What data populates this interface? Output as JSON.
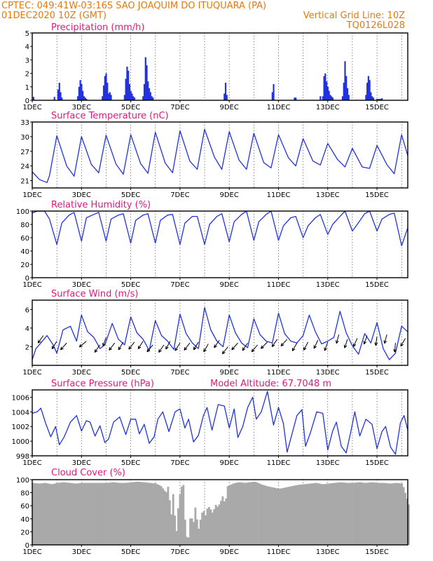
{
  "header": {
    "line1": "CPTEC:   049:41W-03:16S  SAO JOAQUIM DO ITUQUARA (PA)",
    "date": "01DEC2020 10Z (GMT)",
    "vgrid": "Vertical Grid Line: 10Z",
    "code": "TQ0126L028"
  },
  "colors": {
    "header": "#e8780c",
    "title": "#e0197d",
    "line": "#2233dd",
    "bar": "#2233dd",
    "cloud": "#a9a9a9",
    "arrow": "#000000"
  },
  "x_axis": {
    "tick_labels": [
      "1DEC",
      "3DEC",
      "5DEC",
      "7DEC",
      "9DEC",
      "11DEC",
      "13DEC",
      "15DEC"
    ],
    "tick_days": [
      0,
      2,
      4,
      6,
      8,
      10,
      12,
      14
    ],
    "range_days": [
      0,
      15.25
    ]
  },
  "chart_data": [
    {
      "type": "bar",
      "title": "Precipitation (mm/h)",
      "ylim": [
        0,
        5
      ],
      "yticks": [
        0,
        1,
        2,
        3,
        4,
        5
      ],
      "x_unit": "days since 01DEC2020 10Z",
      "series": [
        {
          "x": [
            0.05,
            0.9,
            1.05,
            1.1,
            1.15,
            1.2,
            1.85,
            1.9,
            1.95,
            2.0,
            2.05,
            2.1,
            2.15,
            2.2,
            2.85,
            2.9,
            2.95,
            3.0,
            3.05,
            3.1,
            3.15,
            3.2,
            3.75,
            3.8,
            3.85,
            3.9,
            3.95,
            4.0,
            4.05,
            4.1,
            4.15,
            4.5,
            4.55,
            4.6,
            4.65,
            4.7,
            4.75,
            4.8,
            4.85,
            4.9,
            7.8,
            7.85,
            7.9,
            9.75,
            9.8,
            10.65,
            10.7,
            11.7,
            11.8,
            11.85,
            11.9,
            11.95,
            12.0,
            12.05,
            12.1,
            12.15,
            12.2,
            12.6,
            12.65,
            12.7,
            12.75,
            12.8,
            12.85,
            13.55,
            13.6,
            13.65,
            13.7,
            13.75,
            13.8,
            13.85,
            14.0,
            14.05,
            14.1,
            14.15,
            14.2
          ],
          "values": [
            0.25,
            0.25,
            0.8,
            1.3,
            0.6,
            0.2,
            0.3,
            1.0,
            1.5,
            1.2,
            0.7,
            0.3,
            0.2,
            0.1,
            0.3,
            1.1,
            1.8,
            2.0,
            1.3,
            0.5,
            0.6,
            0.4,
            0.4,
            1.6,
            2.5,
            2.2,
            1.2,
            0.7,
            0.5,
            0.3,
            0.2,
            0.3,
            1.2,
            3.2,
            2.6,
            1.4,
            0.9,
            0.6,
            0.3,
            0.2,
            0.5,
            1.3,
            0.4,
            0.6,
            1.2,
            0.2,
            0.2,
            0.3,
            0.3,
            1.8,
            2.0,
            1.4,
            1.0,
            0.7,
            0.4,
            0.3,
            0.2,
            0.3,
            1.3,
            2.9,
            1.8,
            0.9,
            0.4,
            0.4,
            1.3,
            1.8,
            1.5,
            0.6,
            0.3,
            0.2,
            0.1,
            0.1,
            0.1,
            0.1,
            0.15
          ]
        }
      ]
    },
    {
      "type": "line",
      "title": "Surface Temperature (nC)",
      "ylim": [
        19.5,
        33
      ],
      "yticks": [
        21,
        24,
        27,
        30,
        33
      ],
      "x_unit": "days since 01DEC2020 10Z",
      "series": [
        {
          "x": [
            0,
            0.3,
            0.6,
            0.7,
            1.0,
            1.4,
            1.7,
            2.0,
            2.4,
            2.7,
            3.0,
            3.4,
            3.7,
            4.0,
            4.4,
            4.7,
            5.0,
            5.4,
            5.7,
            6.0,
            6.4,
            6.7,
            7.0,
            7.4,
            7.7,
            8.0,
            8.4,
            8.7,
            9.0,
            9.4,
            9.7,
            10.0,
            10.4,
            10.7,
            11.0,
            11.4,
            11.7,
            12.0,
            12.4,
            12.7,
            13.0,
            13.4,
            13.7,
            14.0,
            14.4,
            14.7,
            15.0,
            15.25
          ],
          "values": [
            22.8,
            21.2,
            20.6,
            22.0,
            30.2,
            24.0,
            21.9,
            30.0,
            24.3,
            22.6,
            30.3,
            24.4,
            22.3,
            30.4,
            24.5,
            22.5,
            30.9,
            24.6,
            22.6,
            31.2,
            25.0,
            23.3,
            31.5,
            25.8,
            23.3,
            31.0,
            25.2,
            23.3,
            30.7,
            24.7,
            23.6,
            30.4,
            25.7,
            24.0,
            29.6,
            25.0,
            24.2,
            28.6,
            25.3,
            23.8,
            27.6,
            23.8,
            23.5,
            28.2,
            24.3,
            22.4,
            30.4,
            26.1
          ]
        }
      ]
    },
    {
      "type": "line",
      "title": "Relative Humidity (%)",
      "ylim": [
        0,
        100
      ],
      "yticks": [
        0,
        20,
        40,
        60,
        80,
        100
      ],
      "x_unit": "days since 01DEC2020 10Z",
      "series": [
        {
          "x": [
            0,
            0.2,
            0.5,
            0.7,
            1.0,
            1.2,
            1.5,
            1.7,
            2.0,
            2.2,
            2.5,
            2.7,
            3.0,
            3.2,
            3.5,
            3.7,
            4.0,
            4.2,
            4.5,
            4.7,
            5.0,
            5.2,
            5.5,
            5.7,
            6.0,
            6.2,
            6.5,
            6.7,
            7.0,
            7.2,
            7.5,
            7.7,
            8.0,
            8.2,
            8.5,
            8.7,
            9.0,
            9.2,
            9.5,
            9.7,
            10.0,
            10.2,
            10.5,
            10.7,
            11.0,
            11.2,
            11.5,
            11.7,
            12.0,
            12.2,
            12.5,
            12.7,
            13.0,
            13.2,
            13.5,
            13.7,
            14.0,
            14.2,
            14.5,
            14.7,
            15.0,
            15.25
          ],
          "values": [
            97,
            100,
            100,
            88,
            50,
            82,
            94,
            98,
            55,
            90,
            95,
            98,
            55,
            88,
            94,
            96,
            52,
            86,
            94,
            96,
            52,
            86,
            94,
            95,
            50,
            82,
            92,
            92,
            50,
            80,
            92,
            96,
            54,
            84,
            95,
            100,
            56,
            84,
            95,
            100,
            56,
            78,
            90,
            92,
            60,
            78,
            90,
            95,
            65,
            80,
            92,
            100,
            70,
            80,
            96,
            100,
            70,
            88,
            95,
            97,
            48,
            75
          ]
        }
      ]
    },
    {
      "type": "line",
      "title": "Surface Wind (m/s)",
      "ylim": [
        0,
        7
      ],
      "yticks": [
        2,
        4,
        6
      ],
      "x_unit": "days since 01DEC2020 10Z",
      "series": [
        {
          "x": [
            0,
            0.15,
            0.35,
            0.6,
            0.85,
            1.0,
            1.25,
            1.55,
            1.8,
            2.0,
            2.25,
            2.5,
            2.75,
            2.95,
            3.25,
            3.5,
            3.75,
            4.0,
            4.25,
            4.5,
            4.75,
            5.0,
            5.25,
            5.5,
            5.75,
            6.0,
            6.25,
            6.5,
            6.75,
            7.0,
            7.25,
            7.5,
            7.75,
            8.0,
            8.25,
            8.5,
            8.75,
            9.0,
            9.25,
            9.5,
            9.75,
            10.0,
            10.25,
            10.5,
            10.75,
            11.0,
            11.25,
            11.5,
            11.75,
            12.0,
            12.25,
            12.5,
            12.75,
            13.0,
            13.25,
            13.5,
            13.75,
            14.0,
            14.25,
            14.5,
            14.75,
            15.0,
            15.25
          ],
          "values": [
            0.6,
            1.8,
            2.4,
            3.2,
            2.2,
            1.3,
            3.8,
            4.2,
            2.6,
            5.4,
            3.6,
            3.0,
            1.8,
            2.2,
            4.5,
            2.8,
            2.2,
            5.2,
            3.5,
            2.8,
            1.6,
            4.8,
            3.2,
            2.6,
            1.7,
            5.5,
            3.4,
            2.4,
            1.8,
            6.2,
            3.8,
            2.6,
            2.0,
            5.4,
            3.5,
            2.4,
            1.9,
            5.0,
            3.3,
            2.6,
            2.4,
            5.6,
            3.4,
            2.6,
            2.4,
            3.2,
            5.4,
            3.6,
            2.3,
            2.6,
            3.0,
            5.8,
            3.5,
            2.1,
            1.2,
            3.4,
            2.4,
            4.6,
            1.8,
            0.6,
            1.3,
            4.2,
            3.6
          ]
        }
      ],
      "wind_vectors": {
        "x": [
          0.45,
          1.0,
          1.4,
          2.2,
          2.75,
          3.0,
          3.35,
          3.7,
          4.15,
          4.5,
          4.9,
          5.35,
          5.6,
          6.0,
          6.4,
          6.75,
          7.15,
          7.6,
          7.95,
          8.35,
          8.75,
          9.15,
          9.55,
          9.95,
          10.35,
          10.75,
          11.2,
          11.6,
          12.0,
          12.45,
          12.8,
          13.2,
          13.6,
          14.0,
          14.4,
          14.75,
          15.15
        ],
        "y": [
          3.2,
          2.6,
          2.4,
          2.6,
          2.2,
          3.0,
          2.4,
          2.5,
          2.5,
          2.6,
          2.2,
          2.2,
          2.6,
          2.4,
          2.4,
          2.5,
          2.3,
          2.7,
          2.0,
          2.4,
          2.4,
          2.2,
          2.5,
          2.8,
          2.8,
          2.4,
          2.5,
          2.7,
          2.5,
          3.3,
          2.8,
          2.9,
          3.2,
          3.1,
          3.3,
          2.4,
          2.9
        ],
        "direction_deg": [
          215,
          212,
          222,
          230,
          215,
          200,
          218,
          212,
          218,
          212,
          220,
          215,
          208,
          212,
          218,
          212,
          210,
          215,
          218,
          222,
          215,
          220,
          225,
          215,
          222,
          210,
          208,
          205,
          200,
          195,
          198,
          205,
          200,
          188,
          195,
          185,
          210
        ]
      }
    },
    {
      "type": "line",
      "title": "Surface Pressure (hPa)",
      "annotation": "Model Altitude: 67.7048 m",
      "ylim": [
        998,
        1007
      ],
      "yticks": [
        998,
        1000,
        1002,
        1004,
        1006
      ],
      "x_unit": "days since 01DEC2020 10Z",
      "series": [
        {
          "x": [
            0,
            0.2,
            0.35,
            0.55,
            0.75,
            0.95,
            1.1,
            1.3,
            1.55,
            1.8,
            2.0,
            2.2,
            2.35,
            2.55,
            2.75,
            2.95,
            3.1,
            3.3,
            3.55,
            3.8,
            4.0,
            4.2,
            4.35,
            4.55,
            4.75,
            4.95,
            5.1,
            5.3,
            5.55,
            5.8,
            6.0,
            6.2,
            6.35,
            6.55,
            6.75,
            6.95,
            7.1,
            7.3,
            7.55,
            7.8,
            8.0,
            8.2,
            8.35,
            8.55,
            8.75,
            8.95,
            9.1,
            9.3,
            9.55,
            9.8,
            10.0,
            10.2,
            10.35,
            10.55,
            10.75,
            10.95,
            11.1,
            11.3,
            11.55,
            11.8,
            12.0,
            12.2,
            12.35,
            12.55,
            12.75,
            12.95,
            13.1,
            13.3,
            13.55,
            13.8,
            14.0,
            14.2,
            14.35,
            14.55,
            14.75,
            14.95,
            15.1,
            15.25
          ],
          "values": [
            1003.8,
            1004.0,
            1004.5,
            1002.4,
            1000.6,
            1002.0,
            999.5,
            1000.6,
            1002.6,
            1003.5,
            1001.4,
            1002.8,
            1002.6,
            1000.7,
            1002.1,
            999.8,
            1000.3,
            1002.6,
            1003.3,
            1000.9,
            1003.0,
            1003.0,
            1001.0,
            1002.3,
            999.7,
            1000.6,
            1003.0,
            1004.0,
            1001.3,
            1004.0,
            1004.4,
            1001.8,
            1003.0,
            999.9,
            1000.8,
            1003.5,
            1004.6,
            1001.5,
            1005.0,
            1004.8,
            1001.8,
            1004.4,
            1000.5,
            1002.0,
            1004.6,
            1006.0,
            1003.0,
            1004.0,
            1006.8,
            1002.2,
            1004.6,
            1002.4,
            998.5,
            1001.0,
            1003.5,
            1004.3,
            999.3,
            1001.2,
            1004.0,
            1003.8,
            998.8,
            1001.4,
            1002.6,
            999.3,
            998.4,
            1001.5,
            1004.0,
            1000.7,
            1003.0,
            1002.3,
            999.0,
            1001.3,
            1002.0,
            999.2,
            998.2,
            1002.5,
            1003.5,
            1001.5
          ]
        }
      ]
    },
    {
      "type": "area",
      "title": "Cloud Cover (%)",
      "ylim": [
        0,
        100
      ],
      "yticks": [
        0,
        20,
        40,
        60,
        80,
        100
      ],
      "x_unit": "days since 01DEC2020 10Z",
      "series": [
        {
          "x": [
            0,
            0.25,
            0.5,
            0.75,
            1.0,
            1.25,
            1.5,
            1.75,
            2.0,
            2.25,
            2.5,
            2.75,
            3.0,
            3.25,
            3.5,
            3.75,
            4.0,
            4.25,
            4.5,
            4.75,
            5.0,
            5.2,
            5.4,
            5.5,
            5.6,
            5.7,
            5.8,
            5.9,
            6.0,
            6.1,
            6.2,
            6.3,
            6.4,
            6.5,
            6.6,
            6.7,
            6.8,
            6.9,
            7.0,
            7.1,
            7.2,
            7.3,
            7.4,
            7.5,
            7.6,
            7.7,
            7.8,
            7.9,
            8.0,
            8.2,
            8.4,
            8.6,
            8.8,
            9.0,
            9.25,
            9.5,
            9.75,
            10.0,
            10.25,
            10.5,
            10.75,
            11.0,
            11.25,
            11.5,
            11.75,
            12.0,
            12.25,
            12.5,
            12.75,
            13.0,
            13.25,
            13.5,
            13.75,
            14.0,
            14.25,
            14.5,
            14.75,
            15.0,
            15.25
          ],
          "values": [
            95,
            94,
            95,
            93,
            95,
            96,
            95,
            94,
            95,
            95,
            95,
            95,
            95,
            96,
            95,
            95,
            96,
            97,
            96,
            95,
            94,
            90,
            80,
            92,
            40,
            85,
            10,
            60,
            88,
            92,
            15,
            8,
            50,
            30,
            62,
            20,
            40,
            55,
            45,
            60,
            55,
            48,
            62,
            58,
            65,
            75,
            62,
            90,
            92,
            95,
            96,
            95,
            96,
            97,
            93,
            90,
            88,
            86,
            88,
            90,
            92,
            93,
            94,
            95,
            93,
            94,
            95,
            96,
            95,
            95,
            96,
            95,
            96,
            95,
            95,
            94,
            95,
            94,
            62
          ]
        }
      ]
    }
  ]
}
